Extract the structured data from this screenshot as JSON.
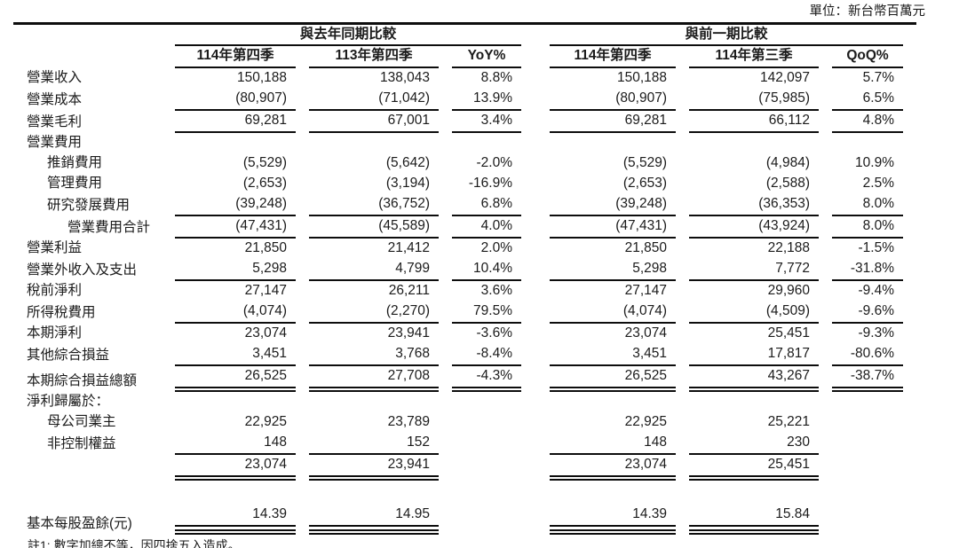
{
  "unit_label": "單位：新台幣百萬元",
  "table": {
    "groups": [
      "與去年同期比較",
      "與前一期比較"
    ],
    "columns": [
      "114年第四季",
      "113年第四季",
      "YoY%",
      "114年第四季",
      "114年第三季",
      "QoQ%"
    ],
    "rows": [
      {
        "label": "營業收入",
        "values": [
          "150,188",
          "138,043",
          "8.8%",
          "150,188",
          "142,097",
          "5.7%"
        ]
      },
      {
        "label": "營業成本",
        "u": "s",
        "values": [
          "(80,907)",
          "(71,042)",
          "13.9%",
          "(80,907)",
          "(75,985)",
          "6.5%"
        ]
      },
      {
        "label": "營業毛利",
        "u": "s",
        "values": [
          "69,281",
          "67,001",
          "3.4%",
          "69,281",
          "66,112",
          "4.8%"
        ]
      },
      {
        "label": "營業費用",
        "values": [
          "",
          "",
          "",
          "",
          "",
          ""
        ]
      },
      {
        "label": "推銷費用",
        "indent": 1,
        "values": [
          "(5,529)",
          "(5,642)",
          "-2.0%",
          "(5,529)",
          "(4,984)",
          "10.9%"
        ]
      },
      {
        "label": "管理費用",
        "indent": 1,
        "values": [
          "(2,653)",
          "(3,194)",
          "-16.9%",
          "(2,653)",
          "(2,588)",
          "2.5%"
        ]
      },
      {
        "label": "研究發展費用",
        "indent": 1,
        "u": "s",
        "values": [
          "(39,248)",
          "(36,752)",
          "6.8%",
          "(39,248)",
          "(36,353)",
          "8.0%"
        ]
      },
      {
        "label": "營業費用合計",
        "indent": 2,
        "u": "s",
        "values": [
          "(47,431)",
          "(45,589)",
          "4.0%",
          "(47,431)",
          "(43,924)",
          "8.0%"
        ]
      },
      {
        "label": "營業利益",
        "values": [
          "21,850",
          "21,412",
          "2.0%",
          "21,850",
          "22,188",
          "-1.5%"
        ]
      },
      {
        "label": "營業外收入及支出",
        "u": "s",
        "values": [
          "5,298",
          "4,799",
          "10.4%",
          "5,298",
          "7,772",
          "-31.8%"
        ]
      },
      {
        "label": "稅前淨利",
        "values": [
          "27,147",
          "26,211",
          "3.6%",
          "27,147",
          "29,960",
          "-9.4%"
        ]
      },
      {
        "label": "所得稅費用",
        "u": "s",
        "values": [
          "(4,074)",
          "(2,270)",
          "79.5%",
          "(4,074)",
          "(4,509)",
          "-9.6%"
        ]
      },
      {
        "label": "本期淨利",
        "values": [
          "23,074",
          "23,941",
          "-3.6%",
          "23,074",
          "25,451",
          "-9.3%"
        ]
      },
      {
        "label": "其他綜合損益",
        "u": "s",
        "values": [
          "3,451",
          "3,768",
          "-8.4%",
          "3,451",
          "17,817",
          "-80.6%"
        ]
      },
      {
        "label": "本期綜合損益總額",
        "u": "d",
        "values": [
          "26,525",
          "27,708",
          "-4.3%",
          "26,525",
          "43,267",
          "-38.7%"
        ]
      },
      {
        "label": "淨利歸屬於：",
        "values": [
          "",
          "",
          "",
          "",
          "",
          ""
        ]
      },
      {
        "label": "母公司業主",
        "indent": 1,
        "values": [
          "22,925",
          "23,789",
          "",
          "22,925",
          "25,221",
          ""
        ]
      },
      {
        "label": "非控制權益",
        "indent": 1,
        "u": "s",
        "values": [
          "148",
          "152",
          "",
          "148",
          "230",
          ""
        ]
      },
      {
        "label": "",
        "u": "d",
        "values": [
          "23,074",
          "23,941",
          "",
          "23,074",
          "25,451",
          ""
        ]
      },
      {
        "spacer": true
      },
      {
        "label": "基本每股盈餘(元)",
        "u": "sd",
        "values": [
          "14.39",
          "14.95",
          "",
          "14.39",
          "15.84",
          ""
        ]
      }
    ]
  },
  "footnote": "註1: 數字加總不等，因四捨五入造成。"
}
